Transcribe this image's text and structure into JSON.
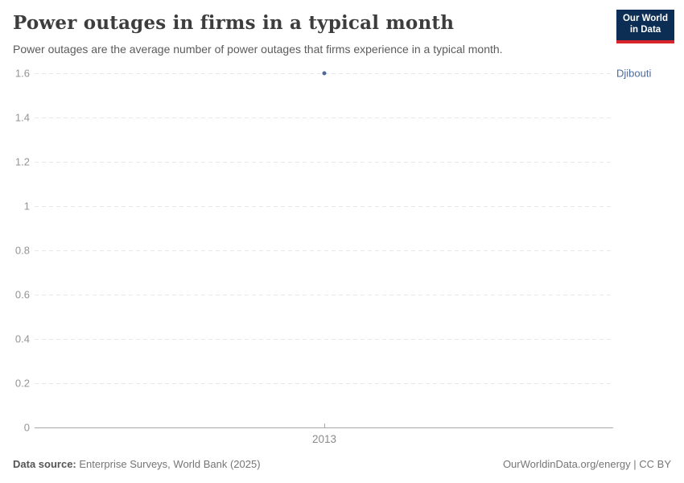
{
  "header": {
    "title": "Power outages in firms in a typical month",
    "subtitle": "Power outages are the average number of power outages that firms experience in a typical month.",
    "logo": {
      "line1": "Our World",
      "line2": "in Data",
      "bg_color": "#0d2e54",
      "bar_color": "#d8252c"
    }
  },
  "chart_data": {
    "type": "scatter",
    "title": "Power outages in firms in a typical month",
    "xlabel": "",
    "ylabel": "",
    "ylim": [
      0,
      1.6
    ],
    "grid": "horizontal-dashed",
    "legend_position": "right-of-point",
    "series": [
      {
        "name": "Djibouti",
        "color": "#4C6A9C",
        "points": [
          {
            "x": 2013,
            "y": 1.6
          }
        ]
      }
    ],
    "x_ticks": [
      {
        "value": 2013,
        "label": "2013"
      }
    ],
    "y_ticks": [
      {
        "value": 0,
        "label": "0"
      },
      {
        "value": 0.2,
        "label": "0.2"
      },
      {
        "value": 0.4,
        "label": "0.4"
      },
      {
        "value": 0.6,
        "label": "0.6"
      },
      {
        "value": 0.8,
        "label": "0.8"
      },
      {
        "value": 1,
        "label": "1"
      },
      {
        "value": 1.2,
        "label": "1.2"
      },
      {
        "value": 1.4,
        "label": "1.4"
      },
      {
        "value": 1.6,
        "label": "1.6"
      }
    ]
  },
  "footer": {
    "source_label": "Data source:",
    "source_value": " Enterprise Surveys, World Bank (2025)",
    "credit": "OurWorldinData.org/energy | CC BY"
  }
}
